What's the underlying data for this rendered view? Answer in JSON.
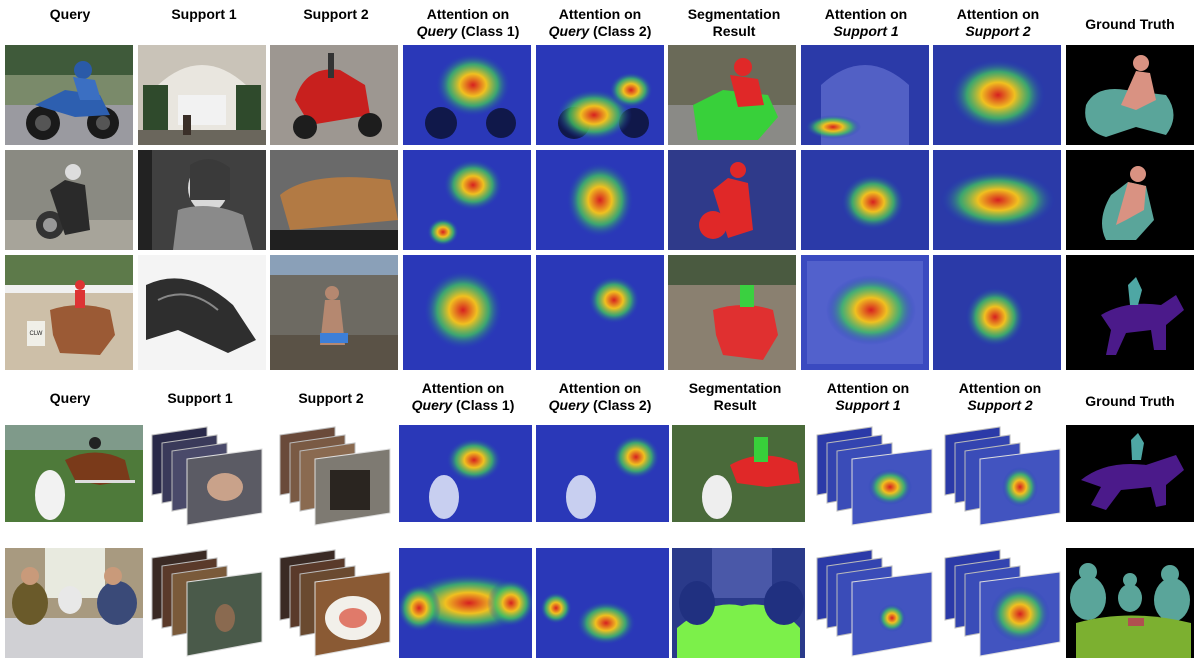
{
  "headers_top": [
    {
      "line1": "Query",
      "line2": "",
      "line2_em": "",
      "line2_rest": ""
    },
    {
      "line1": "Support 1",
      "line2": "",
      "line2_em": "",
      "line2_rest": ""
    },
    {
      "line1": "Support 2",
      "line2": "",
      "line2_em": "",
      "line2_rest": ""
    },
    {
      "line1": "Attention on",
      "line2_em": "Query",
      "line2_rest": " (Class 1)"
    },
    {
      "line1": "Attention on",
      "line2_em": "Query",
      "line2_rest": " (Class 2)"
    },
    {
      "line1": "Segmentation",
      "line2_em": "",
      "line2_rest": "Result"
    },
    {
      "line1": "Attention on",
      "line2_em": "Support 1",
      "line2_rest": ""
    },
    {
      "line1": "Attention on",
      "line2_em": "Support 2",
      "line2_rest": ""
    },
    {
      "line1": "Ground Truth",
      "line2_em": "",
      "line2_rest": ""
    }
  ],
  "headers_bottom": [
    {
      "line1": "Query",
      "line2_em": "",
      "line2_rest": ""
    },
    {
      "line1": "Support 1",
      "line2_em": "",
      "line2_rest": ""
    },
    {
      "line1": "Support 2",
      "line2_em": "",
      "line2_rest": ""
    },
    {
      "line1": "Attention on",
      "line2_em": "Query",
      "line2_rest": " (Class 1)"
    },
    {
      "line1": "Attention on",
      "line2_em": "Query",
      "line2_rest": " (Class 2)"
    },
    {
      "line1": "Segmentation",
      "line2_em": "",
      "line2_rest": "Result"
    },
    {
      "line1": "Attention on",
      "line2_em": "Support 1",
      "line2_rest": ""
    },
    {
      "line1": "Attention on",
      "line2_em": "Support 2",
      "line2_rest": ""
    },
    {
      "line1": "Ground Truth",
      "line2_em": "",
      "line2_rest": ""
    }
  ],
  "clip_text": {
    "barrel_label": "CLW"
  }
}
